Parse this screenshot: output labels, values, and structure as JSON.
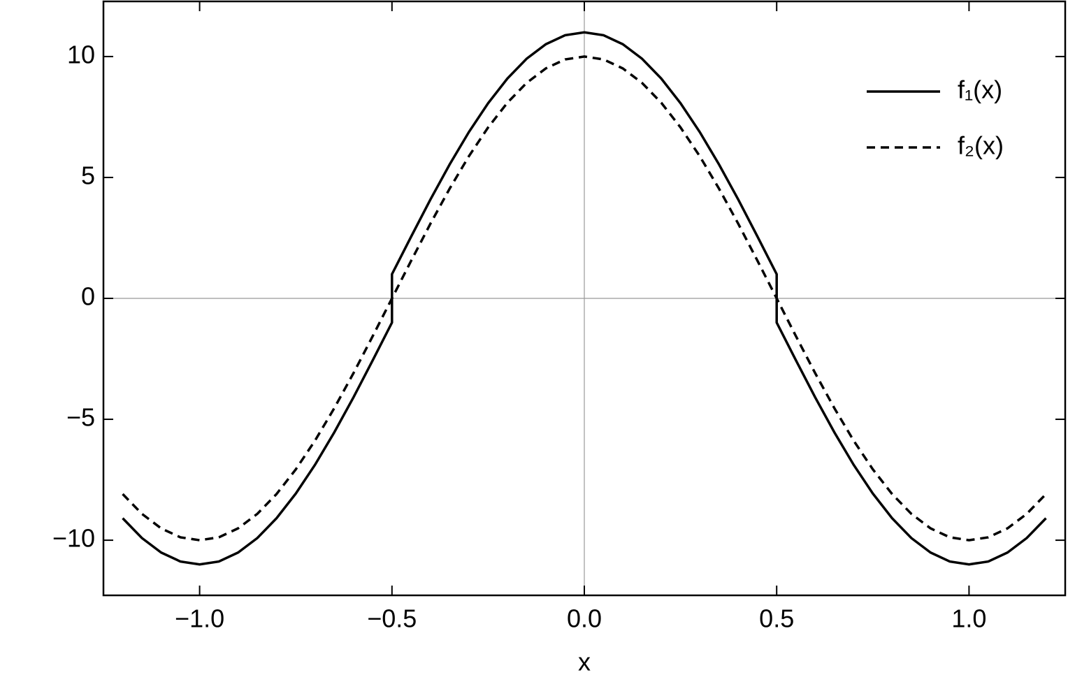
{
  "chart_data": {
    "type": "line",
    "x_label": "x",
    "xlim": [
      -1.25,
      1.25
    ],
    "ylim": [
      -12.28,
      12.28
    ],
    "xticks": [
      {
        "value": -1,
        "label": "−1.0"
      },
      {
        "value": -0.5,
        "label": "−0.5"
      },
      {
        "value": 0,
        "label": "0.0"
      },
      0.5,
      {
        "value": 1,
        "label": "1.0"
      }
    ],
    "yticks": [
      {
        "value": -10,
        "label": "−10"
      },
      {
        "value": -5,
        "label": "−5"
      },
      0,
      5,
      10
    ],
    "legend": "top-right",
    "series": [
      {
        "name": "f₁(x)",
        "color": "#000000",
        "dash": "solid",
        "x": [
          -1.2,
          -1.15,
          -1.1,
          -1.05,
          -1,
          -0.95,
          -0.9,
          -0.85,
          -0.8,
          -0.75,
          -0.7,
          -0.65,
          -0.6,
          -0.55,
          -0.5,
          -0.5,
          -0.45,
          -0.4,
          -0.35,
          -0.3,
          -0.25,
          -0.2,
          -0.15,
          -0.1,
          -0.05,
          0,
          0.05,
          0.1,
          0.15,
          0.2,
          0.25,
          0.3,
          0.35,
          0.4,
          0.45,
          0.5,
          0.5,
          0.55,
          0.6,
          0.65,
          0.7,
          0.75,
          0.8,
          0.85,
          0.9,
          0.95,
          1,
          1.05,
          1.1,
          1.15,
          1.2
        ],
        "values": [
          -9.09,
          -9.91,
          -10.51,
          -10.88,
          -11,
          -10.88,
          -10.51,
          -9.91,
          -9.09,
          -8.07,
          -6.88,
          -5.54,
          -4.09,
          -2.56,
          -1,
          1,
          2.56,
          4.09,
          5.54,
          6.88,
          8.07,
          9.09,
          9.91,
          10.51,
          10.88,
          11,
          10.88,
          10.51,
          9.91,
          9.09,
          8.07,
          6.88,
          5.54,
          4.09,
          2.56,
          1,
          -1,
          -2.56,
          -4.09,
          -5.54,
          -6.88,
          -8.07,
          -9.09,
          -9.91,
          -10.51,
          -10.88,
          -11,
          -10.88,
          -10.51,
          -9.91,
          -9.09
        ]
      },
      {
        "name": "f₂(x)",
        "color": "#000000",
        "dash": "dashed",
        "x": [
          -1.2,
          -1.15,
          -1.1,
          -1.05,
          -1,
          -0.95,
          -0.9,
          -0.85,
          -0.8,
          -0.75,
          -0.7,
          -0.65,
          -0.6,
          -0.55,
          -0.5,
          -0.45,
          -0.4,
          -0.35,
          -0.3,
          -0.25,
          -0.2,
          -0.15,
          -0.1,
          -0.05,
          0,
          0.05,
          0.1,
          0.15,
          0.2,
          0.25,
          0.3,
          0.35,
          0.4,
          0.45,
          0.5,
          0.55,
          0.6,
          0.65,
          0.7,
          0.75,
          0.8,
          0.85,
          0.9,
          0.95,
          1,
          1.05,
          1.1,
          1.15,
          1.2
        ],
        "values": [
          -8.09,
          -8.91,
          -9.51,
          -9.88,
          -10,
          -9.88,
          -9.51,
          -8.91,
          -8.09,
          -7.07,
          -5.88,
          -4.54,
          -3.09,
          -1.56,
          0,
          1.56,
          3.09,
          4.54,
          5.88,
          7.07,
          8.09,
          8.91,
          9.51,
          9.88,
          10,
          9.88,
          9.51,
          8.91,
          8.09,
          7.07,
          5.88,
          4.54,
          3.09,
          1.56,
          0,
          -1.56,
          -3.09,
          -4.54,
          -5.88,
          -7.07,
          -8.09,
          -8.91,
          -9.51,
          -9.88,
          -10,
          -9.88,
          -9.51,
          -8.91,
          -8.09
        ]
      }
    ]
  }
}
